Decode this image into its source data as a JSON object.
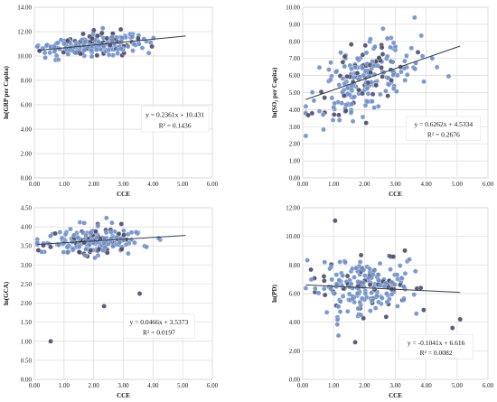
{
  "chart_data": [
    {
      "type": "scatter",
      "xlabel": "CCE",
      "ylabel": "ln(GRP per Capita)",
      "xlim": [
        0,
        6
      ],
      "ylim": [
        0,
        14
      ],
      "x_ticks": [
        "0.00",
        "1.00",
        "2.00",
        "3.00",
        "4.00",
        "5.00",
        "6.00"
      ],
      "y_ticks": [
        "0.00",
        "2.00",
        "4.00",
        "6.00",
        "8.00",
        "10.00",
        "12.00",
        "14.00"
      ],
      "grid": true,
      "trendline": {
        "slope": 0.2361,
        "intercept": 10.431
      },
      "equation": "y = 0.2361x + 10.431",
      "r2_label": "R² = 0.1436",
      "point_color": "#6f8fc6",
      "outlier_color": "#4a4a68",
      "line_color": "#333d4a"
    },
    {
      "type": "scatter",
      "xlabel": "CCE",
      "ylabel": "ln(SO₂ per Capita)",
      "xlim": [
        0,
        6
      ],
      "ylim": [
        0,
        10
      ],
      "x_ticks": [
        "0.00",
        "1.00",
        "2.00",
        "3.00",
        "4.00",
        "5.00",
        "6.00"
      ],
      "y_ticks": [
        "0.00",
        "1.00",
        "2.00",
        "3.00",
        "4.00",
        "5.00",
        "6.00",
        "7.00",
        "8.00",
        "9.00",
        "10.00"
      ],
      "grid": true,
      "trendline": {
        "slope": 0.6262,
        "intercept": 4.5334
      },
      "equation": "y = 0.6262x + 4.5334",
      "r2_label": "R² = 0.2676",
      "point_color": "#6f8fc6",
      "outlier_color": "#4a4a68",
      "line_color": "#333d4a"
    },
    {
      "type": "scatter",
      "xlabel": "CCE",
      "ylabel": "ln(GCA)",
      "xlim": [
        0,
        6
      ],
      "ylim": [
        0,
        4.5
      ],
      "x_ticks": [
        "0.00",
        "1.00",
        "2.00",
        "3.00",
        "4.00",
        "5.00",
        "6.00"
      ],
      "y_ticks": [
        "0.00",
        "0.50",
        "1.00",
        "1.50",
        "2.00",
        "2.50",
        "3.00",
        "3.50",
        "4.00",
        "4.50"
      ],
      "grid": true,
      "trendline": {
        "slope": 0.0466,
        "intercept": 3.5373
      },
      "equation": "y = 0.0466x + 3.5373",
      "r2_label": "R² = 0.0197",
      "point_color": "#6f8fc6",
      "outlier_color": "#4a4a68",
      "line_color": "#333d4a",
      "outliers": [
        [
          0.55,
          1.0
        ],
        [
          2.35,
          1.92
        ],
        [
          3.55,
          2.25
        ]
      ]
    },
    {
      "type": "scatter",
      "xlabel": "CCE",
      "ylabel": "ln(PD)",
      "xlim": [
        0,
        6
      ],
      "ylim": [
        0,
        12
      ],
      "x_ticks": [
        "0.00",
        "1.00",
        "2.00",
        "3.00",
        "4.00",
        "5.00",
        "6.00"
      ],
      "y_ticks": [
        "0.00",
        "2.00",
        "4.00",
        "6.00",
        "8.00",
        "10.00",
        "12.00"
      ],
      "grid": true,
      "trendline": {
        "slope": -0.1041,
        "intercept": 6.616
      },
      "equation": "y = -0.1041x + 6.616",
      "r2_label": "R² = 0.0082",
      "point_color": "#6f8fc6",
      "outlier_color": "#4a4a68",
      "line_color": "#333d4a",
      "outliers": [
        [
          1.05,
          11.1
        ],
        [
          1.7,
          2.6
        ],
        [
          4.85,
          3.6
        ],
        [
          5.1,
          4.2
        ]
      ]
    }
  ]
}
